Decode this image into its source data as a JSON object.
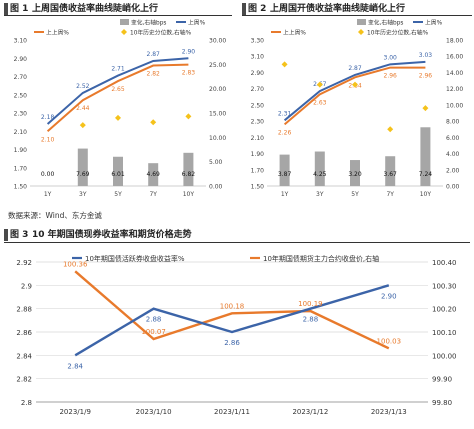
{
  "figures": {
    "fig1_num": "图 1",
    "fig1_title": "上周国债收益率曲线陡峭化上行",
    "fig2_num": "图 2",
    "fig2_title": "上周国开债收益率曲线陡峭化上行",
    "fig3_num": "图 3",
    "fig3_title": "10 年期国债现券收益率和期货价格走势"
  },
  "source": "数据来源：Wind、东方金诚",
  "colors": {
    "blue": "#3c64a8",
    "orange": "#e87a2c",
    "gray": "#a6a6a6",
    "gold": "#f5c21b"
  },
  "chart_data": [
    {
      "type": "bar",
      "categories": [
        "1Y",
        "3Y",
        "5Y",
        "7Y",
        "10Y"
      ],
      "series": [
        {
          "name": "变化,右轴bps",
          "kind": "bar",
          "axis": "right",
          "values": [
            0.0,
            7.69,
            6.01,
            4.69,
            6.82
          ],
          "labels": [
            "0.00",
            "7.69",
            "6.01",
            "4.69",
            "6.82"
          ]
        },
        {
          "name": "上周%",
          "kind": "line",
          "axis": "left",
          "values": [
            2.18,
            2.52,
            2.71,
            2.87,
            2.9
          ],
          "labels": [
            "2.18",
            "2.52",
            "2.71",
            "2.87",
            "2.90"
          ]
        },
        {
          "name": "上上周%",
          "kind": "line",
          "axis": "left",
          "values": [
            2.1,
            2.44,
            2.65,
            2.82,
            2.83
          ],
          "labels": [
            "2.10",
            "2.44",
            "2.65",
            "2.82",
            "2.83"
          ]
        },
        {
          "name": "10年历史分位数,右轴%",
          "kind": "marker",
          "axis": "right",
          "values": [
            null,
            12.5,
            14.0,
            13.1,
            14.3
          ]
        }
      ],
      "yleft_ticks": [
        "1.50",
        "1.70",
        "1.90",
        "2.10",
        "2.30",
        "2.50",
        "2.70",
        "2.90",
        "3.10"
      ],
      "ylim_left": [
        1.5,
        3.1
      ],
      "yright_ticks": [
        "0.00",
        "5.00",
        "10.00",
        "15.00",
        "20.00",
        "25.00",
        "30.00"
      ],
      "ylim_right": [
        0,
        30
      ]
    },
    {
      "type": "bar",
      "categories": [
        "1Y",
        "3Y",
        "5Y",
        "7Y",
        "10Y"
      ],
      "series": [
        {
          "name": "变化,右轴bps",
          "kind": "bar",
          "axis": "right",
          "values": [
            3.87,
            4.25,
            3.2,
            3.67,
            7.24
          ],
          "labels": [
            "3.87",
            "4.25",
            "3.20",
            "3.67",
            "7.24"
          ]
        },
        {
          "name": "上周%",
          "kind": "line",
          "axis": "left",
          "values": [
            2.31,
            2.67,
            2.87,
            3.0,
            3.03
          ],
          "labels": [
            "2.31",
            "2.67",
            "2.87",
            "3.00",
            "3.03"
          ]
        },
        {
          "name": "上上周%",
          "kind": "line",
          "axis": "left",
          "values": [
            2.26,
            2.63,
            2.84,
            2.96,
            2.96
          ],
          "labels": [
            "2.26",
            "2.63",
            "2.84",
            "2.96",
            "2.96"
          ]
        },
        {
          "name": "10年历史分位数,右轴%",
          "kind": "marker",
          "axis": "right",
          "values": [
            15.0,
            12.5,
            12.5,
            7.0,
            9.6
          ]
        }
      ],
      "yleft_ticks": [
        "1.50",
        "1.70",
        "1.90",
        "2.10",
        "2.30",
        "2.50",
        "2.70",
        "2.90",
        "3.10",
        "3.30"
      ],
      "ylim_left": [
        1.5,
        3.3
      ],
      "yright_ticks": [
        "0.00",
        "2.00",
        "4.00",
        "6.00",
        "8.00",
        "10.00",
        "12.00",
        "14.00",
        "16.00",
        "18.00"
      ],
      "ylim_right": [
        0,
        18
      ]
    },
    {
      "type": "line",
      "categories": [
        "2023/1/9",
        "2023/1/10",
        "2023/1/11",
        "2023/1/12",
        "2023/1/13"
      ],
      "series": [
        {
          "name": "10年期国债活跃券收盘收益率%",
          "axis": "left",
          "values": [
            2.84,
            2.88,
            2.86,
            2.88,
            2.9
          ],
          "labels": [
            "2.84",
            "2.88",
            "2.86",
            "2.88",
            "2.90"
          ]
        },
        {
          "name": "10年期国债期货主力合约收盘价,右轴",
          "axis": "right",
          "values": [
            100.36,
            100.07,
            100.18,
            100.19,
            100.03
          ],
          "labels": [
            "100.36",
            "100.07",
            "100.18",
            "100.19",
            "100.03"
          ]
        }
      ],
      "yleft_ticks": [
        "2.8",
        "2.82",
        "2.84",
        "2.86",
        "2.88",
        "2.9",
        "2.92"
      ],
      "ylim_left": [
        2.8,
        2.92
      ],
      "yright_ticks": [
        "99.80",
        "99.90",
        "100.00",
        "100.10",
        "100.20",
        "100.30",
        "100.40"
      ],
      "ylim_right": [
        99.8,
        100.4
      ]
    }
  ]
}
